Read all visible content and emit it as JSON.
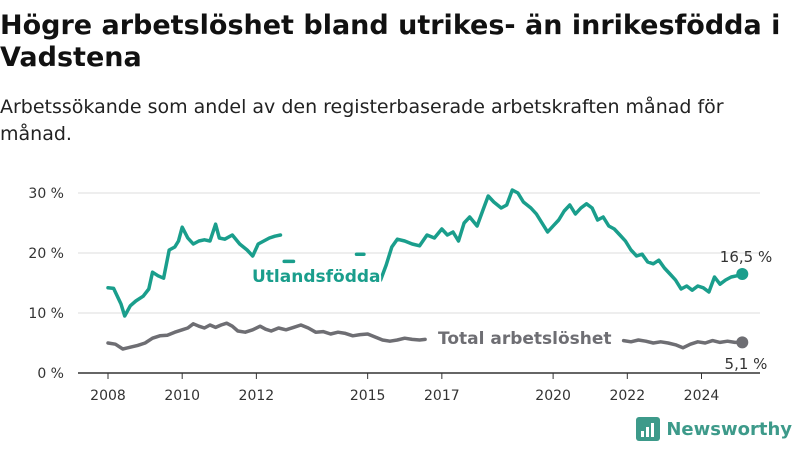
{
  "title": "Högre arbetslöshet bland utrikes- än inrikesfödda i Vadstena",
  "subtitle": "Arbetssökande som andel av den registerbaserade arbetskraften månad för månad.",
  "brand": "Newsworthy",
  "colors": {
    "utlandsfodda": "#1a9e8c",
    "total": "#6e6e73",
    "grid": "#dddddd",
    "axis": "#333333"
  },
  "chart_data": {
    "type": "line",
    "title": "Högre arbetslöshet bland utrikes- än inrikesfödda i Vadstena",
    "subtitle": "Arbetssökande som andel av den registerbaserade arbetskraften månad för månad.",
    "xlim": [
      2008,
      2025.2
    ],
    "ylim": [
      0,
      32
    ],
    "y_ticks": [
      0,
      10,
      20,
      30
    ],
    "y_tick_labels": [
      "0 %",
      "10 %",
      "20 %",
      "30 %"
    ],
    "x_ticks": [
      2008,
      2010,
      2012,
      2015,
      2017,
      2020,
      2022,
      2024
    ],
    "x_tick_labels": [
      "2008",
      "2010",
      "2012",
      "2015",
      "2017",
      "2020",
      "2022",
      "2024"
    ],
    "grid": "horizontal",
    "series": [
      {
        "name": "Utlandsfödda",
        "end_label": "16,5 %",
        "segments": [
          [
            [
              2008.0,
              14.2
            ],
            [
              2008.15,
              14.1
            ],
            [
              2008.35,
              11.5
            ],
            [
              2008.45,
              9.5
            ],
            [
              2008.6,
              11.2
            ],
            [
              2008.75,
              12.0
            ],
            [
              2008.95,
              12.8
            ],
            [
              2009.1,
              14.0
            ],
            [
              2009.2,
              16.8
            ],
            [
              2009.35,
              16.2
            ],
            [
              2009.5,
              15.8
            ],
            [
              2009.65,
              20.5
            ],
            [
              2009.8,
              21.0
            ],
            [
              2009.9,
              22.0
            ],
            [
              2010.0,
              24.3
            ],
            [
              2010.15,
              22.5
            ],
            [
              2010.3,
              21.5
            ],
            [
              2010.45,
              22.0
            ],
            [
              2010.6,
              22.2
            ],
            [
              2010.75,
              22.0
            ],
            [
              2010.9,
              24.8
            ],
            [
              2011.0,
              22.5
            ],
            [
              2011.15,
              22.3
            ],
            [
              2011.35,
              23.0
            ],
            [
              2011.55,
              21.5
            ],
            [
              2011.75,
              20.5
            ],
            [
              2011.9,
              19.5
            ],
            [
              2012.05,
              21.5
            ],
            [
              2012.2,
              22.0
            ],
            [
              2012.35,
              22.5
            ],
            [
              2012.5,
              22.8
            ],
            [
              2012.65,
              23.0
            ]
          ],
          [
            [
              2012.75,
              18.6
            ],
            [
              2013.0,
              18.6
            ]
          ],
          [
            [
              2014.7,
              19.8
            ],
            [
              2014.9,
              19.8
            ]
          ],
          [
            [
              2015.35,
              15.5
            ],
            [
              2015.5,
              18.0
            ],
            [
              2015.65,
              21.0
            ],
            [
              2015.8,
              22.3
            ],
            [
              2016.0,
              22.0
            ],
            [
              2016.2,
              21.5
            ],
            [
              2016.4,
              21.2
            ],
            [
              2016.6,
              23.0
            ],
            [
              2016.8,
              22.5
            ],
            [
              2017.0,
              24.0
            ],
            [
              2017.15,
              23.0
            ],
            [
              2017.3,
              23.5
            ],
            [
              2017.45,
              22.0
            ],
            [
              2017.6,
              25.0
            ],
            [
              2017.75,
              26.0
            ],
            [
              2017.95,
              24.5
            ],
            [
              2018.1,
              27.0
            ],
            [
              2018.25,
              29.5
            ],
            [
              2018.4,
              28.5
            ],
            [
              2018.6,
              27.5
            ],
            [
              2018.75,
              28.0
            ],
            [
              2018.9,
              30.5
            ],
            [
              2019.05,
              30.0
            ],
            [
              2019.2,
              28.5
            ],
            [
              2019.4,
              27.5
            ],
            [
              2019.55,
              26.5
            ],
            [
              2019.7,
              25.0
            ],
            [
              2019.85,
              23.5
            ],
            [
              2020.0,
              24.5
            ],
            [
              2020.15,
              25.5
            ],
            [
              2020.3,
              27.0
            ],
            [
              2020.45,
              28.0
            ],
            [
              2020.6,
              26.5
            ],
            [
              2020.75,
              27.5
            ],
            [
              2020.9,
              28.2
            ],
            [
              2021.05,
              27.5
            ],
            [
              2021.2,
              25.5
            ],
            [
              2021.35,
              26.0
            ],
            [
              2021.5,
              24.5
            ],
            [
              2021.65,
              24.0
            ],
            [
              2021.8,
              23.0
            ],
            [
              2021.95,
              22.0
            ],
            [
              2022.1,
              20.5
            ],
            [
              2022.25,
              19.5
            ],
            [
              2022.4,
              19.8
            ],
            [
              2022.55,
              18.5
            ],
            [
              2022.7,
              18.2
            ],
            [
              2022.85,
              18.8
            ],
            [
              2023.0,
              17.5
            ],
            [
              2023.15,
              16.5
            ],
            [
              2023.3,
              15.5
            ],
            [
              2023.45,
              14.0
            ],
            [
              2023.6,
              14.5
            ],
            [
              2023.75,
              13.8
            ],
            [
              2023.9,
              14.5
            ],
            [
              2024.05,
              14.2
            ],
            [
              2024.2,
              13.5
            ],
            [
              2024.35,
              16.0
            ],
            [
              2024.5,
              14.8
            ],
            [
              2024.65,
              15.5
            ],
            [
              2024.8,
              16.0
            ],
            [
              2024.95,
              16.2
            ],
            [
              2025.1,
              16.5
            ]
          ]
        ]
      },
      {
        "name": "Total arbetslöshet",
        "end_label": "5,1 %",
        "segments": [
          [
            [
              2008.0,
              5.0
            ],
            [
              2008.2,
              4.8
            ],
            [
              2008.4,
              4.0
            ],
            [
              2008.6,
              4.3
            ],
            [
              2008.8,
              4.6
            ],
            [
              2009.0,
              5.0
            ],
            [
              2009.2,
              5.8
            ],
            [
              2009.4,
              6.2
            ],
            [
              2009.6,
              6.3
            ],
            [
              2009.8,
              6.8
            ],
            [
              2010.0,
              7.2
            ],
            [
              2010.15,
              7.5
            ],
            [
              2010.3,
              8.2
            ],
            [
              2010.45,
              7.8
            ],
            [
              2010.6,
              7.5
            ],
            [
              2010.75,
              8.0
            ],
            [
              2010.9,
              7.6
            ],
            [
              2011.05,
              8.0
            ],
            [
              2011.2,
              8.3
            ],
            [
              2011.35,
              7.8
            ],
            [
              2011.5,
              7.0
            ],
            [
              2011.7,
              6.8
            ],
            [
              2011.9,
              7.2
            ],
            [
              2012.1,
              7.8
            ],
            [
              2012.25,
              7.3
            ],
            [
              2012.4,
              7.0
            ],
            [
              2012.6,
              7.5
            ],
            [
              2012.8,
              7.2
            ],
            [
              2013.0,
              7.6
            ],
            [
              2013.2,
              8.0
            ],
            [
              2013.4,
              7.5
            ],
            [
              2013.6,
              6.8
            ],
            [
              2013.8,
              6.9
            ],
            [
              2014.0,
              6.5
            ],
            [
              2014.2,
              6.8
            ],
            [
              2014.4,
              6.6
            ],
            [
              2014.6,
              6.2
            ],
            [
              2014.8,
              6.4
            ],
            [
              2015.0,
              6.5
            ],
            [
              2015.2,
              6.0
            ],
            [
              2015.4,
              5.5
            ],
            [
              2015.6,
              5.3
            ],
            [
              2015.8,
              5.5
            ],
            [
              2016.0,
              5.8
            ],
            [
              2016.2,
              5.6
            ],
            [
              2016.4,
              5.5
            ],
            [
              2016.55,
              5.6
            ]
          ],
          [
            [
              2021.9,
              5.4
            ],
            [
              2022.1,
              5.2
            ],
            [
              2022.3,
              5.5
            ],
            [
              2022.5,
              5.3
            ],
            [
              2022.7,
              5.0
            ],
            [
              2022.9,
              5.2
            ],
            [
              2023.1,
              5.0
            ],
            [
              2023.3,
              4.7
            ],
            [
              2023.5,
              4.2
            ],
            [
              2023.7,
              4.8
            ],
            [
              2023.9,
              5.2
            ],
            [
              2024.1,
              5.0
            ],
            [
              2024.3,
              5.4
            ],
            [
              2024.5,
              5.1
            ],
            [
              2024.7,
              5.3
            ],
            [
              2024.9,
              5.1
            ],
            [
              2025.1,
              5.1
            ]
          ]
        ]
      }
    ]
  }
}
